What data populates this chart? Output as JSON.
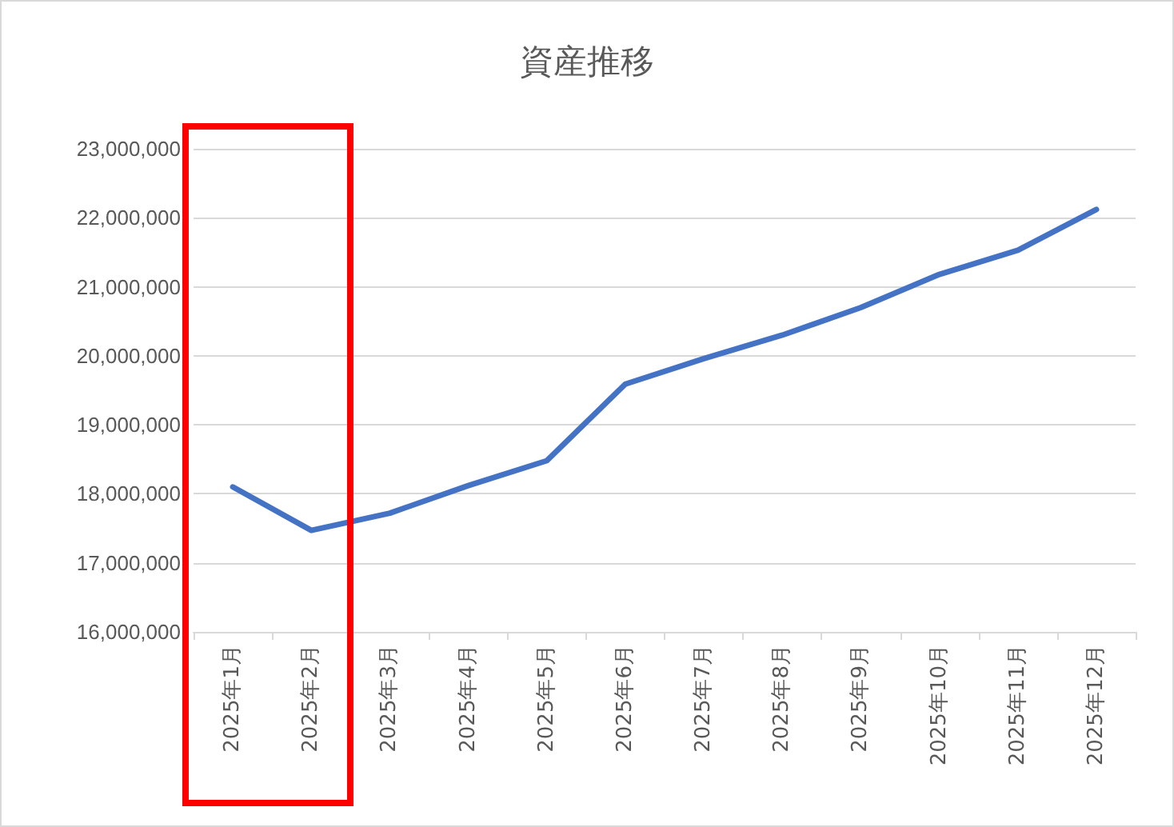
{
  "chart_data": {
    "type": "line",
    "title": "資産推移",
    "categories": [
      "2025年1月",
      "2025年2月",
      "2025年3月",
      "2025年4月",
      "2025年5月",
      "2025年6月",
      "2025年7月",
      "2025年8月",
      "2025年9月",
      "2025年10月",
      "2025年11月",
      "2025年12月"
    ],
    "series": [
      {
        "color": "#4472c4",
        "values": [
          18100000,
          17470000,
          17720000,
          18120000,
          18480000,
          19590000,
          19960000,
          20300000,
          20700000,
          21180000,
          21530000,
          22120000
        ]
      }
    ],
    "ylim": [
      16000000,
      23000000
    ],
    "yticks": [
      {
        "value": 16000000,
        "label": "16,000,000"
      },
      {
        "value": 17000000,
        "label": "17,000,000"
      },
      {
        "value": 18000000,
        "label": "18,000,000"
      },
      {
        "value": 19000000,
        "label": "19,000,000"
      },
      {
        "value": 20000000,
        "label": "20,000,000"
      },
      {
        "value": 21000000,
        "label": "21,000,000"
      },
      {
        "value": 22000000,
        "label": "22,000,000"
      },
      {
        "value": 23000000,
        "label": "23,000,000"
      }
    ],
    "grid": "y",
    "marker": "none",
    "line_style": "solid"
  }
}
